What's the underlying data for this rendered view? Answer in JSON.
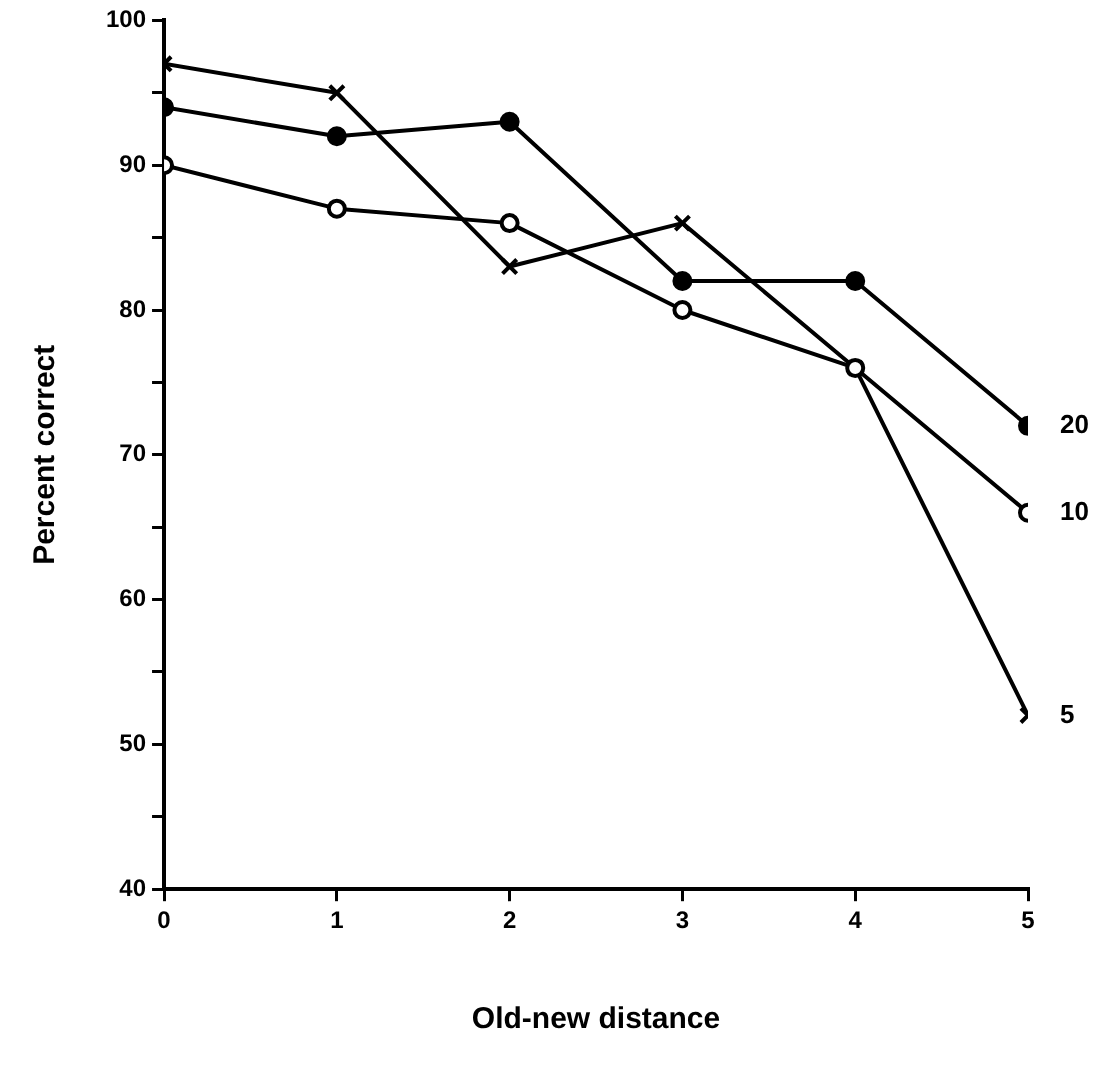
{
  "chart_data": {
    "type": "line",
    "xlabel": "Old-new distance",
    "ylabel": "Percent correct",
    "x": [
      0,
      1,
      2,
      3,
      4,
      5
    ],
    "xlim": [
      0,
      5
    ],
    "xticks": [
      0,
      1,
      2,
      3,
      4,
      5
    ],
    "ylim": [
      40,
      100
    ],
    "yticks": [
      40,
      {
        "value": 45,
        "label": null
      },
      50,
      {
        "value": 55,
        "label": null
      },
      60,
      {
        "value": 65,
        "label": null
      },
      70,
      {
        "value": 75,
        "label": null
      },
      80,
      {
        "value": 85,
        "label": null
      },
      90,
      {
        "value": 95,
        "label": null
      },
      100
    ],
    "grid": false,
    "legend": false,
    "line_style": "solid",
    "series": [
      {
        "name": "20",
        "color": "#000000",
        "marker": "circle",
        "values": [
          94,
          92,
          93,
          82,
          82,
          72
        ]
      },
      {
        "name": "10",
        "color": "#000000",
        "marker": "circle-open",
        "values": [
          90,
          87,
          86,
          80,
          76,
          66
        ]
      },
      {
        "name": "5",
        "color": "#000000",
        "marker": "cross",
        "values": [
          97,
          95,
          83,
          86,
          76,
          52
        ]
      }
    ]
  }
}
